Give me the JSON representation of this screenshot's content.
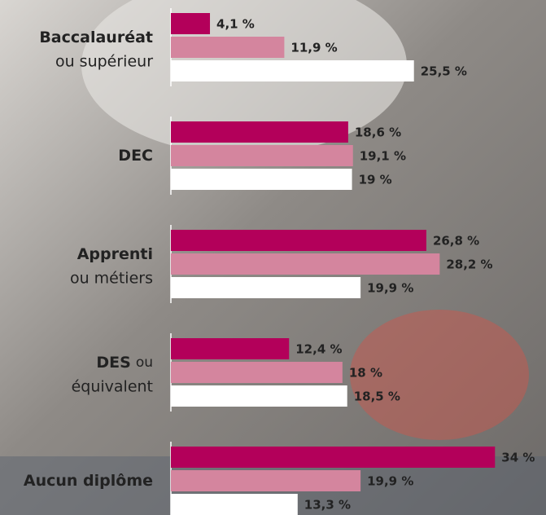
{
  "chart_data": {
    "type": "bar",
    "orientation": "horizontal",
    "categories": [
      [
        "Baccalauréat",
        "ou supérieur"
      ],
      [
        "DEC"
      ],
      [
        "Apprenti",
        "ou métiers"
      ],
      [
        "DES",
        "ou",
        "équivalent"
      ],
      [
        "Aucun diplôme"
      ]
    ],
    "series": [
      {
        "color": "#b3005a",
        "values": [
          4.1,
          18.6,
          26.8,
          12.4,
          34
        ],
        "value_labels": [
          "4,1 %",
          "18,6 %",
          "26,8 %",
          "12,4 %",
          "34 %"
        ]
      },
      {
        "color": "#d4859e",
        "values": [
          11.9,
          19.1,
          28.2,
          18,
          19.9
        ],
        "value_labels": [
          "11,9 %",
          "19,1 %",
          "28,2 %",
          "18 %",
          "19,9 %"
        ]
      },
      {
        "color": "#ffffff",
        "values": [
          25.5,
          19,
          19.9,
          18.5,
          13.3
        ],
        "value_labels": [
          "25,5 %",
          "19 %",
          "19,9 %",
          "18,5 %",
          "13,3 %"
        ]
      }
    ],
    "xlim": [
      0,
      35
    ]
  }
}
